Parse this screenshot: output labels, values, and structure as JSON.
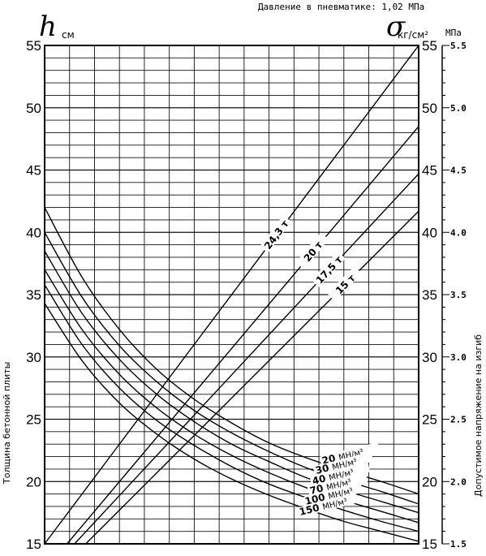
{
  "header": {
    "pressure_label": "Давление в пневматике: 1,02 МПа",
    "left_symbol": "h",
    "left_unit": "см",
    "right_symbol": "σ",
    "right_unit": "кг/см²",
    "mpa_unit": "МПа"
  },
  "chart_data": {
    "type": "line",
    "ylabel": "Толщина бетонной плиты",
    "y2label": "Допустимое напряжение на изгиб",
    "ylim": [
      15,
      55
    ],
    "y_ticks": [
      15,
      20,
      25,
      30,
      35,
      40,
      45,
      50,
      55
    ],
    "y2_ticks": [
      15,
      20,
      25,
      30,
      35,
      40,
      45,
      50,
      55
    ],
    "mpa_ticks": [
      "1.5",
      "2.0",
      "2.5",
      "3.0",
      "3.5",
      "4.0",
      "4.5",
      "5.0",
      "5.5"
    ],
    "mpa_values": [
      1.5,
      2.0,
      2.5,
      3.0,
      3.5,
      4.0,
      4.5,
      5.0,
      5.5
    ],
    "grid": true,
    "load_series": [
      {
        "name": "24,3 т",
        "x": [
          0.0,
          1.0
        ],
        "y": [
          15.0,
          55.0
        ]
      },
      {
        "name": "20 т",
        "x": [
          0.06,
          1.0
        ],
        "y": [
          15.0,
          48.5
        ]
      },
      {
        "name": "17,5 т",
        "x": [
          0.08,
          1.0
        ],
        "y": [
          15.0,
          44.7
        ]
      },
      {
        "name": "15 т",
        "x": [
          0.11,
          1.0
        ],
        "y": [
          15.0,
          41.7
        ]
      }
    ],
    "k_series": [
      {
        "name": "20 МН/м³",
        "x": [
          0,
          0.1,
          0.2,
          0.3,
          0.4,
          0.5,
          0.6,
          0.7,
          0.8,
          0.9,
          1.0
        ],
        "y": [
          42.0,
          36.4,
          32.2,
          29.0,
          26.6,
          24.7,
          23.1,
          21.9,
          20.9,
          20.0,
          19.0
        ]
      },
      {
        "name": "30 МН/м³",
        "x": [
          0,
          0.1,
          0.2,
          0.3,
          0.4,
          0.5,
          0.6,
          0.7,
          0.8,
          0.9,
          1.0
        ],
        "y": [
          40.0,
          34.8,
          30.9,
          28.0,
          25.7,
          23.9,
          22.4,
          21.1,
          20.1,
          19.2,
          18.2
        ]
      },
      {
        "name": "40 МН/м³",
        "x": [
          0,
          0.1,
          0.2,
          0.3,
          0.4,
          0.5,
          0.6,
          0.7,
          0.8,
          0.9,
          1.0
        ],
        "y": [
          38.5,
          33.5,
          29.8,
          27.0,
          24.8,
          23.0,
          21.6,
          20.3,
          19.3,
          18.4,
          17.5
        ]
      },
      {
        "name": "70 МН/м³",
        "x": [
          0,
          0.1,
          0.2,
          0.3,
          0.4,
          0.5,
          0.6,
          0.7,
          0.8,
          0.9,
          1.0
        ],
        "y": [
          37.0,
          32.2,
          28.6,
          25.9,
          23.8,
          22.1,
          20.7,
          19.5,
          18.5,
          17.6,
          16.7
        ]
      },
      {
        "name": "100 МН/м³",
        "x": [
          0,
          0.1,
          0.2,
          0.3,
          0.4,
          0.5,
          0.6,
          0.7,
          0.8,
          0.9,
          1.0
        ],
        "y": [
          35.8,
          31.0,
          27.5,
          24.9,
          22.9,
          21.2,
          19.8,
          18.7,
          17.7,
          16.8,
          16.0
        ]
      },
      {
        "name": "150 МН/м³",
        "x": [
          0,
          0.1,
          0.2,
          0.3,
          0.4,
          0.5,
          0.6,
          0.7,
          0.8,
          0.9,
          1.0
        ],
        "y": [
          34.3,
          29.7,
          26.3,
          23.8,
          21.8,
          20.2,
          18.9,
          17.8,
          16.8,
          16.0,
          15.2
        ]
      }
    ],
    "k_labels": [
      "20",
      "30",
      "40",
      "70",
      "100",
      "150"
    ],
    "k_unit": "МН/м³"
  }
}
